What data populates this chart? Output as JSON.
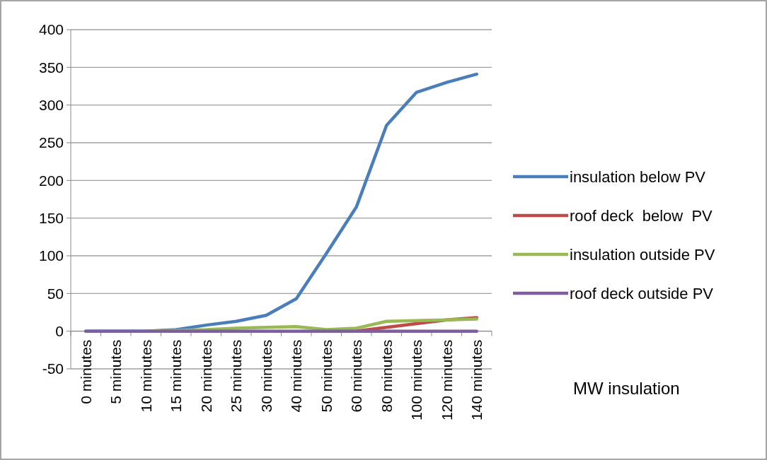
{
  "chart_data": {
    "type": "line",
    "categories": [
      "0 minutes",
      "5 minutes",
      "10 minutes",
      "15 minutes",
      "20 minutes",
      "25 minutes",
      "30 minutes",
      "40 minutes",
      "50 minutes",
      "60 minutes",
      "80 minutes",
      "100 minutes",
      "120 minutes",
      "140 minutes"
    ],
    "series": [
      {
        "name": "insulation below PV",
        "color": "#4a7ebb",
        "values": [
          0,
          0,
          0,
          2,
          8,
          13,
          21,
          43,
          103,
          165,
          273,
          317,
          330,
          341
        ]
      },
      {
        "name": "roof deck  below  PV",
        "color": "#be4b48",
        "values": [
          null,
          null,
          null,
          null,
          null,
          null,
          null,
          null,
          null,
          0,
          5,
          10,
          15,
          18
        ]
      },
      {
        "name": "insulation outside PV",
        "color": "#98b954",
        "values": [
          null,
          null,
          0,
          1,
          2,
          4,
          5,
          6,
          2,
          4,
          13,
          14,
          15,
          16
        ]
      },
      {
        "name": "roof deck outside PV",
        "color": "#7d5fa0",
        "values": [
          0,
          0,
          0,
          0,
          0,
          0,
          0,
          0,
          0,
          0,
          0,
          0,
          0,
          0
        ]
      }
    ],
    "ylim": [
      -50,
      400
    ],
    "yticks": [
      -50,
      0,
      50,
      100,
      150,
      200,
      250,
      300,
      350,
      400
    ],
    "grid": "y",
    "legend": "right",
    "marker": "none",
    "line_style": "solid",
    "annotations": [
      "MW insulation"
    ]
  }
}
